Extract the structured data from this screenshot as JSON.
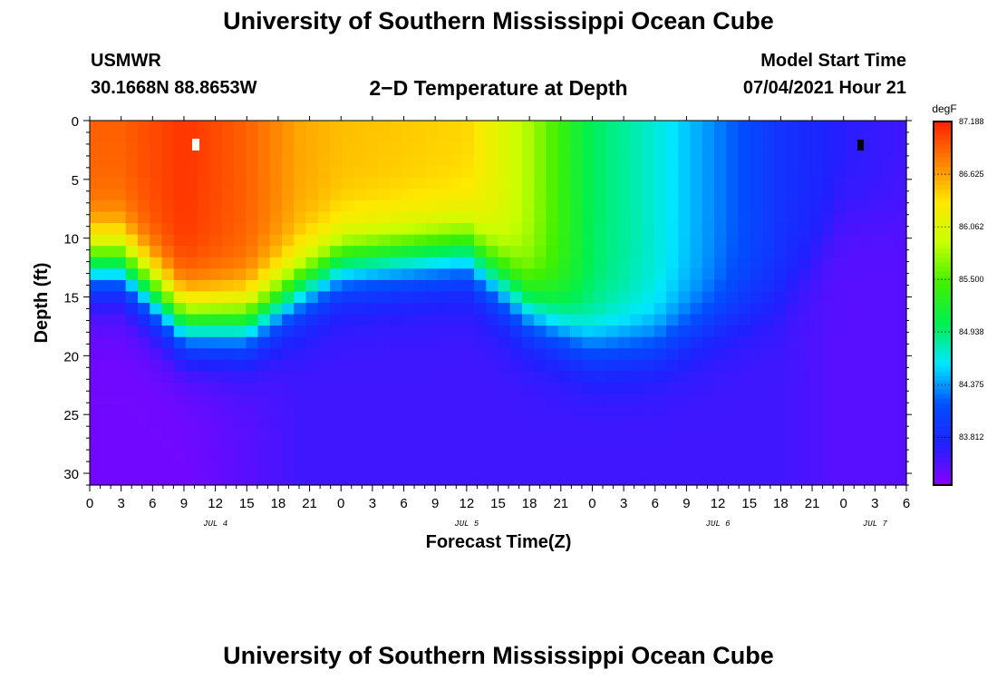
{
  "header": {
    "title": "University of Southern Mississippi Ocean Cube",
    "station_name": "USMWR",
    "station_coords": "30.1668N  88.8653W",
    "chart_title": "2−D Temperature at Depth",
    "model_start_label": "Model Start Time",
    "model_start_value": "07/04/2021 Hour 21"
  },
  "footer": {
    "title": "University of Southern Mississippi Ocean Cube"
  },
  "colorbar": {
    "unit": "degF",
    "tick_labels": [
      "87.188",
      "86.625",
      "86.062",
      "85.500",
      "84.938",
      "84.375",
      "83.812"
    ],
    "tick_values": [
      87.188,
      86.625,
      86.062,
      85.5,
      84.938,
      84.375,
      83.812
    ],
    "min": 83.3,
    "max": 87.188,
    "colors": [
      "#8a00ff",
      "#2020ff",
      "#0050ff",
      "#00e8ff",
      "#00f050",
      "#40f000",
      "#c8ff00",
      "#ffe800",
      "#ff8000",
      "#ff2000"
    ]
  },
  "chart_data": {
    "type": "heatmap",
    "title": "2−D Temperature at Depth",
    "xlabel": "Forecast Time(Z)",
    "ylabel": "Depth (ft)",
    "x_range_hours": [
      0,
      78
    ],
    "y_range": [
      0,
      31
    ],
    "x_tick_labels": [
      "0",
      "3",
      "6",
      "9",
      "12",
      "15",
      "18",
      "21",
      "0",
      "3",
      "6",
      "9",
      "12",
      "15",
      "18",
      "21",
      "0",
      "3",
      "6",
      "9",
      "12",
      "15",
      "18",
      "21",
      "0",
      "3",
      "6"
    ],
    "y_tick_labels": [
      "0",
      "5",
      "10",
      "15",
      "20",
      "25",
      "30"
    ],
    "y_tick_values": [
      0,
      5,
      10,
      15,
      20,
      25,
      30
    ],
    "date_labels": [
      {
        "label": "JUL 4",
        "hour": 12
      },
      {
        "label": "JUL 5",
        "hour": 36
      },
      {
        "label": "JUL 6",
        "hour": 60
      },
      {
        "label": "JUL 7",
        "hour": 75
      }
    ],
    "temperature_degF": [
      {
        "hour": 3,
        "mixed_layer_ft": 12,
        "surface": 86.9,
        "bottom": 83.4
      },
      {
        "hour": 9,
        "mixed_layer_ft": 17,
        "surface": 87.1,
        "bottom": 83.4
      },
      {
        "hour": 15,
        "mixed_layer_ft": 17,
        "surface": 86.9,
        "bottom": 83.5
      },
      {
        "hour": 20,
        "mixed_layer_ft": 14,
        "surface": 86.6,
        "bottom": 83.6
      },
      {
        "hour": 24,
        "mixed_layer_ft": 12,
        "surface": 86.5,
        "bottom": 83.6
      },
      {
        "hour": 36,
        "mixed_layer_ft": 11,
        "surface": 86.4,
        "bottom": 83.6
      },
      {
        "hour": 42,
        "mixed_layer_ft": 16,
        "surface": 85.8,
        "bottom": 83.6
      },
      {
        "hour": 48,
        "mixed_layer_ft": 19,
        "surface": 85.0,
        "bottom": 83.6
      },
      {
        "hour": 54,
        "mixed_layer_ft": 19,
        "surface": 84.7,
        "bottom": 83.6
      },
      {
        "hour": 60,
        "mixed_layer_ft": 17,
        "surface": 84.3,
        "bottom": 83.6
      },
      {
        "hour": 66,
        "mixed_layer_ft": 15,
        "surface": 83.9,
        "bottom": 83.6
      },
      {
        "hour": 72,
        "mixed_layer_ft": 8,
        "surface": 83.7,
        "bottom": 83.5
      },
      {
        "hour": 78,
        "mixed_layer_ft": 8,
        "surface": 83.6,
        "bottom": 83.5
      }
    ]
  }
}
